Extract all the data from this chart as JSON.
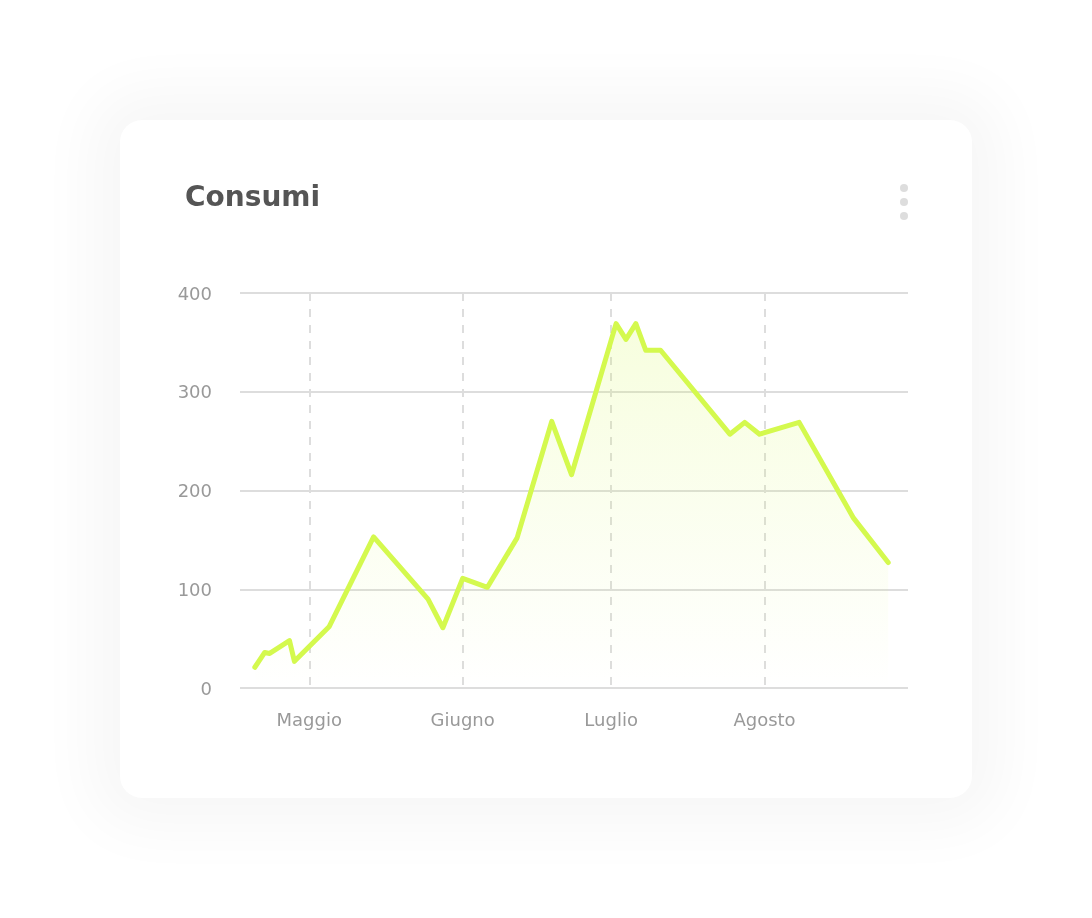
{
  "chart_data": {
    "type": "area",
    "title": "Consumi",
    "categories": [
      null,
      null,
      null,
      null,
      null,
      null,
      null,
      null,
      null,
      null,
      null,
      null,
      null,
      null,
      "Maggio",
      null,
      null,
      null,
      null,
      null,
      null,
      null,
      null,
      null,
      null,
      null,
      null,
      null,
      null,
      null,
      null,
      null,
      null,
      null,
      null,
      null,
      null,
      null,
      null,
      null,
      null,
      null,
      null,
      null,
      null,
      "Giugno",
      null,
      null,
      null,
      null,
      null,
      null,
      null,
      null,
      null,
      null,
      null,
      null,
      null,
      null,
      null,
      null,
      null,
      null,
      null,
      null,
      null,
      null,
      null,
      null,
      null,
      null,
      null,
      null,
      null,
      "Luglio",
      null,
      null,
      null,
      null,
      null,
      null,
      null,
      null,
      null,
      null,
      null,
      null,
      null,
      null,
      null,
      null,
      null,
      null,
      null,
      null,
      null,
      null,
      null,
      null,
      null,
      null,
      null,
      null,
      null,
      null,
      "Agosto",
      null,
      null,
      null,
      null,
      null,
      null,
      null,
      null,
      null,
      null,
      null,
      null,
      null,
      null,
      null,
      null,
      null,
      null,
      null,
      null,
      null,
      null,
      null,
      null,
      null,
      null,
      null,
      null,
      null
    ],
    "series": [
      {
        "color": "#d4f94e",
        "values": [
          null,
          null,
          null,
          21,
          null,
          36,
          35,
          null,
          null,
          null,
          48,
          27,
          null,
          null,
          null,
          null,
          null,
          null,
          62,
          null,
          null,
          null,
          null,
          null,
          null,
          null,
          null,
          153,
          null,
          null,
          null,
          null,
          null,
          null,
          null,
          null,
          null,
          null,
          90,
          null,
          null,
          61,
          null,
          null,
          null,
          111,
          null,
          null,
          null,
          null,
          102,
          null,
          null,
          null,
          null,
          null,
          152,
          null,
          null,
          null,
          null,
          null,
          null,
          270,
          null,
          null,
          null,
          216,
          null,
          null,
          null,
          null,
          null,
          null,
          null,
          null,
          369,
          null,
          353,
          null,
          369,
          null,
          342,
          null,
          null,
          342,
          null,
          null,
          null,
          null,
          null,
          null,
          null,
          null,
          null,
          null,
          null,
          null,
          null,
          257,
          null,
          null,
          269,
          null,
          null,
          257,
          null,
          null,
          null,
          null,
          null,
          null,
          null,
          269,
          null,
          null,
          null,
          null,
          null,
          null,
          null,
          null,
          null,
          null,
          172,
          null,
          null,
          null,
          null,
          null,
          null,
          127,
          null,
          null,
          null,
          null
        ]
      }
    ],
    "ylim": [
      0,
      400
    ],
    "yticks": [
      0,
      100,
      200,
      300,
      400
    ],
    "grid": true,
    "marker": "none",
    "line_style": "solid"
  }
}
